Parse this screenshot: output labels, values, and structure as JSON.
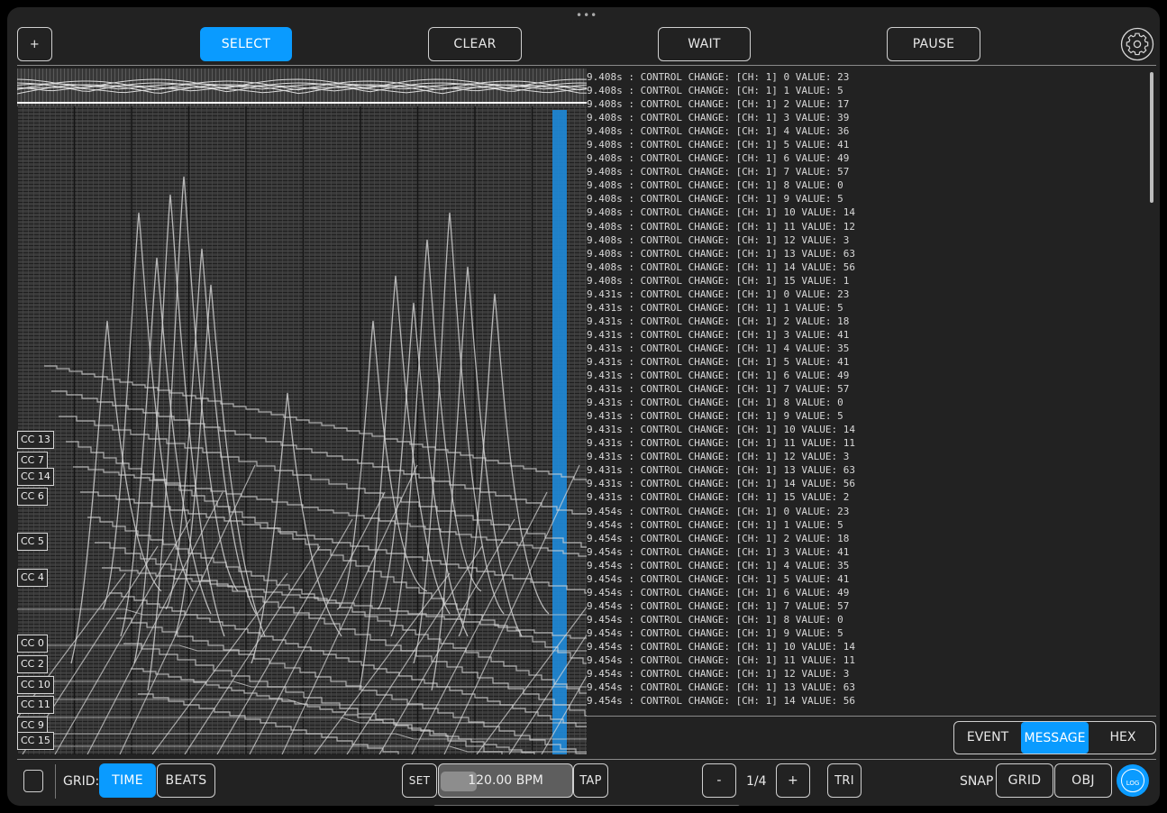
{
  "topbar": {
    "handle": "•••",
    "add_label": "+",
    "select_label": "SELECT",
    "clear_label": "CLEAR",
    "wait_label": "WAIT",
    "pause_label": "PAUSE",
    "settings_icon": "gear-icon"
  },
  "cc_labels": [
    "CC 13",
    "CC 7",
    "CC 14",
    "CC 6",
    "CC 5",
    "CC 4",
    "CC 0",
    "CC 2",
    "CC 10",
    "CC 11",
    "CC 9",
    "CC 15"
  ],
  "log_lines": [
    "9.408s : CONTROL CHANGE: [CH: 1] 0 VALUE: 23",
    "9.408s : CONTROL CHANGE: [CH: 1] 1 VALUE: 5",
    "9.408s : CONTROL CHANGE: [CH: 1] 2 VALUE: 17",
    "9.408s : CONTROL CHANGE: [CH: 1] 3 VALUE: 39",
    "9.408s : CONTROL CHANGE: [CH: 1] 4 VALUE: 36",
    "9.408s : CONTROL CHANGE: [CH: 1] 5 VALUE: 41",
    "9.408s : CONTROL CHANGE: [CH: 1] 6 VALUE: 49",
    "9.408s : CONTROL CHANGE: [CH: 1] 7 VALUE: 57",
    "9.408s : CONTROL CHANGE: [CH: 1] 8 VALUE: 0",
    "9.408s : CONTROL CHANGE: [CH: 1] 9 VALUE: 5",
    "9.408s : CONTROL CHANGE: [CH: 1] 10 VALUE: 14",
    "9.408s : CONTROL CHANGE: [CH: 1] 11 VALUE: 12",
    "9.408s : CONTROL CHANGE: [CH: 1] 12 VALUE: 3",
    "9.408s : CONTROL CHANGE: [CH: 1] 13 VALUE: 63",
    "9.408s : CONTROL CHANGE: [CH: 1] 14 VALUE: 56",
    "9.408s : CONTROL CHANGE: [CH: 1] 15 VALUE: 1",
    "9.431s : CONTROL CHANGE: [CH: 1] 0 VALUE: 23",
    "9.431s : CONTROL CHANGE: [CH: 1] 1 VALUE: 5",
    "9.431s : CONTROL CHANGE: [CH: 1] 2 VALUE: 18",
    "9.431s : CONTROL CHANGE: [CH: 1] 3 VALUE: 41",
    "9.431s : CONTROL CHANGE: [CH: 1] 4 VALUE: 35",
    "9.431s : CONTROL CHANGE: [CH: 1] 5 VALUE: 41",
    "9.431s : CONTROL CHANGE: [CH: 1] 6 VALUE: 49",
    "9.431s : CONTROL CHANGE: [CH: 1] 7 VALUE: 57",
    "9.431s : CONTROL CHANGE: [CH: 1] 8 VALUE: 0",
    "9.431s : CONTROL CHANGE: [CH: 1] 9 VALUE: 5",
    "9.431s : CONTROL CHANGE: [CH: 1] 10 VALUE: 14",
    "9.431s : CONTROL CHANGE: [CH: 1] 11 VALUE: 11",
    "9.431s : CONTROL CHANGE: [CH: 1] 12 VALUE: 3",
    "9.431s : CONTROL CHANGE: [CH: 1] 13 VALUE: 63",
    "9.431s : CONTROL CHANGE: [CH: 1] 14 VALUE: 56",
    "9.431s : CONTROL CHANGE: [CH: 1] 15 VALUE: 2",
    "9.454s : CONTROL CHANGE: [CH: 1] 0 VALUE: 23",
    "9.454s : CONTROL CHANGE: [CH: 1] 1 VALUE: 5",
    "9.454s : CONTROL CHANGE: [CH: 1] 2 VALUE: 18",
    "9.454s : CONTROL CHANGE: [CH: 1] 3 VALUE: 41",
    "9.454s : CONTROL CHANGE: [CH: 1] 4 VALUE: 35",
    "9.454s : CONTROL CHANGE: [CH: 1] 5 VALUE: 41",
    "9.454s : CONTROL CHANGE: [CH: 1] 6 VALUE: 49",
    "9.454s : CONTROL CHANGE: [CH: 1] 7 VALUE: 57",
    "9.454s : CONTROL CHANGE: [CH: 1] 8 VALUE: 0",
    "9.454s : CONTROL CHANGE: [CH: 1] 9 VALUE: 5",
    "9.454s : CONTROL CHANGE: [CH: 1] 10 VALUE: 14",
    "9.454s : CONTROL CHANGE: [CH: 1] 11 VALUE: 11",
    "9.454s : CONTROL CHANGE: [CH: 1] 12 VALUE: 3",
    "9.454s : CONTROL CHANGE: [CH: 1] 13 VALUE: 63",
    "9.454s : CONTROL CHANGE: [CH: 1] 14 VALUE: 56"
  ],
  "view_mode": {
    "event_label": "EVENT",
    "message_label": "MESSAGE",
    "hex_label": "HEX",
    "selected": "MESSAGE"
  },
  "bottombar": {
    "page_icon": "page-icon",
    "grid_label": "GRID:",
    "time_label": "TIME",
    "beats_label": "BEATS",
    "set_label": "SET",
    "bpm_value": "120.00 BPM",
    "tap_label": "TAP",
    "minus_label": "-",
    "division": "1/4",
    "plus_label": "+",
    "tri_label": "TRI",
    "snap_label": "SNAP",
    "snap_grid_label": "GRID",
    "snap_obj_label": "OBJ",
    "log_badge": "LOG"
  },
  "colors": {
    "accent": "#0a9bff",
    "background": "#222222",
    "playhead": "#1e88d6"
  }
}
